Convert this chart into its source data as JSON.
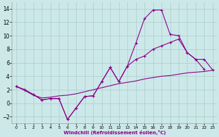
{
  "xlabel": "Windchill (Refroidissement éolien,°C)",
  "bg_color": "#cce8e8",
  "grid_color": "#aacccc",
  "line_color": "#880088",
  "xlim": [
    -0.5,
    23.5
  ],
  "ylim": [
    -3,
    15
  ],
  "xticks": [
    0,
    1,
    2,
    3,
    4,
    5,
    6,
    7,
    8,
    9,
    10,
    11,
    12,
    13,
    14,
    15,
    16,
    17,
    18,
    19,
    20,
    21,
    22,
    23
  ],
  "yticks": [
    -2,
    0,
    2,
    4,
    6,
    8,
    10,
    12,
    14
  ],
  "curve1_x": [
    0,
    1,
    2,
    3,
    4,
    5,
    6,
    7,
    8,
    9,
    10,
    11,
    12,
    13,
    14,
    15,
    16,
    17,
    18,
    19,
    20,
    21,
    22,
    23
  ],
  "curve1_y": [
    2.5,
    2.0,
    1.3,
    0.5,
    0.7,
    0.7,
    -2.4,
    -0.7,
    1.0,
    1.1,
    3.2,
    5.3,
    3.2,
    5.5,
    8.9,
    12.5,
    13.8,
    13.8,
    10.2,
    10.0,
    7.5,
    6.5,
    5.0,
    null
  ],
  "curve2_x": [
    0,
    1,
    2,
    3,
    4,
    5,
    6,
    7,
    8,
    9,
    10,
    11,
    12,
    13,
    14,
    15,
    16,
    17,
    18,
    19,
    20,
    21,
    22,
    23
  ],
  "curve2_y": [
    2.5,
    2.0,
    1.3,
    0.5,
    0.7,
    0.7,
    -2.4,
    -0.7,
    1.0,
    1.1,
    3.2,
    5.3,
    3.2,
    5.5,
    6.5,
    7.0,
    8.0,
    8.5,
    9.0,
    9.5,
    7.5,
    6.5,
    6.5,
    4.9
  ],
  "curve3_x": [
    0,
    1,
    2,
    3,
    4,
    5,
    6,
    7,
    8,
    9,
    10,
    11,
    12,
    13,
    14,
    15,
    16,
    17,
    18,
    19,
    20,
    21,
    22,
    23
  ],
  "curve3_y": [
    2.5,
    1.9,
    1.2,
    0.8,
    0.9,
    1.1,
    1.2,
    1.4,
    1.7,
    2.0,
    2.3,
    2.6,
    2.9,
    3.1,
    3.3,
    3.6,
    3.8,
    4.0,
    4.1,
    4.3,
    4.5,
    4.6,
    4.7,
    4.9
  ]
}
